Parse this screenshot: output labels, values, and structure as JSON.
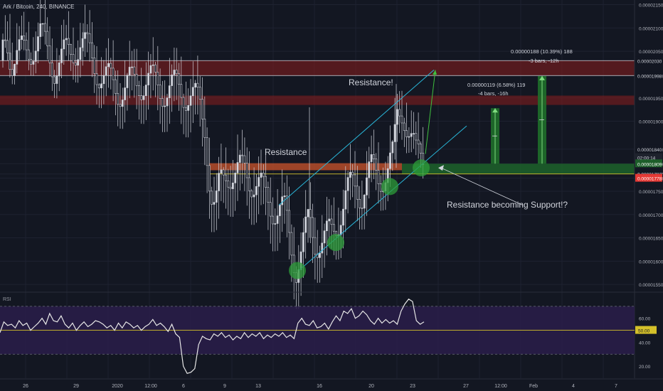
{
  "header": {
    "title": "Ark / Bitcoin, 240, BINANCE"
  },
  "colors": {
    "background": "#131722",
    "grid": "#1e2230",
    "candle_up": "#d1d4dc",
    "candle_down": "#d1d4dc",
    "zone_red": "#8b1e1e",
    "zone_orange": "#c0502a",
    "zone_green": "#1d5e2a",
    "channel": "#29b6d8",
    "arrow_green": "#3fbf3f",
    "rsi_fill": "#2a1d4a",
    "rsi_mid": "#d4c02a"
  },
  "chart_data": {
    "type": "candlestick",
    "title": "Ark / Bitcoin, 240, BINANCE",
    "y_ticks": [
      "0.00002150",
      "0.00002100",
      "0.00002050",
      "0.00001998",
      "0.00001950",
      "0.00001900",
      "0.00001840",
      "0.00001809",
      "0.00001787",
      "0.00001778",
      "0.00001750",
      "0.00001700",
      "0.00001650",
      "0.00001600",
      "0.00001550"
    ],
    "ylim": [
      1.535e-05,
      2.16e-05
    ],
    "x_ticks": [
      "26",
      "29",
      "2020",
      "12:00",
      "6",
      "9",
      "13",
      "16",
      "20",
      "23",
      "27",
      "12:00",
      "Feb",
      "4",
      "7"
    ],
    "price_tags": {
      "upper_zone_top": "0.00002030",
      "upper_zone_bottom": "0.00001998",
      "current": "0.00001840",
      "countdown": "02:00:14",
      "support_top": "0.00001809",
      "support_bottom": "0.00001787",
      "last_red": "0.00001778"
    },
    "annotations": {
      "resistance_1": "Resistance!",
      "resistance_2": "Resistance",
      "support_note": "Resistance becoming Support!?",
      "target_1_line1": "0.00000119 (6.58%) 119",
      "target_1_line2": "-4 bars, -16h",
      "target_2_line1": "0.00000188 (10.39%) 188",
      "target_2_line2": "-3 bars, -12h"
    },
    "zones": [
      {
        "name": "upper-red-zone",
        "from": 1.998e-05,
        "to": 2.03e-05
      },
      {
        "name": "mid-red-zone",
        "from": 1.935e-05,
        "to": 1.955e-05
      },
      {
        "name": "orange-zone",
        "from": 1.795e-05,
        "to": 1.81e-05
      },
      {
        "name": "green-support-zone",
        "from": 1.787e-05,
        "to": 1.809e-05
      }
    ],
    "rsi": {
      "label": "RSI",
      "ticks": [
        "60.00",
        "50.00",
        "40.00",
        "20.00"
      ],
      "upper": 70,
      "lower": 30,
      "mid": 50,
      "ylim": [
        10,
        80
      ],
      "values": [
        48,
        57,
        54,
        55,
        52,
        58,
        54,
        56,
        50,
        53,
        56,
        60,
        55,
        64,
        58,
        57,
        62,
        55,
        52,
        56,
        50,
        54,
        57,
        53,
        55,
        58,
        57,
        55,
        52,
        54,
        50,
        56,
        52,
        57,
        55,
        52,
        54,
        50,
        53,
        55,
        59,
        54,
        56,
        53,
        49,
        55,
        47,
        44,
        20,
        14,
        15,
        18,
        38,
        45,
        43,
        42,
        47,
        45,
        48,
        44,
        46,
        42,
        45,
        43,
        48,
        44,
        47,
        45,
        48,
        43,
        46,
        44,
        47,
        45,
        48,
        44,
        46,
        43,
        56,
        60,
        55,
        54,
        58,
        52,
        53,
        56,
        51,
        57,
        62,
        58,
        66,
        64,
        68,
        60,
        62,
        66,
        63,
        58,
        55,
        60,
        56,
        59,
        56,
        58,
        55,
        66,
        72,
        76,
        74,
        58,
        55,
        57
      ]
    }
  }
}
